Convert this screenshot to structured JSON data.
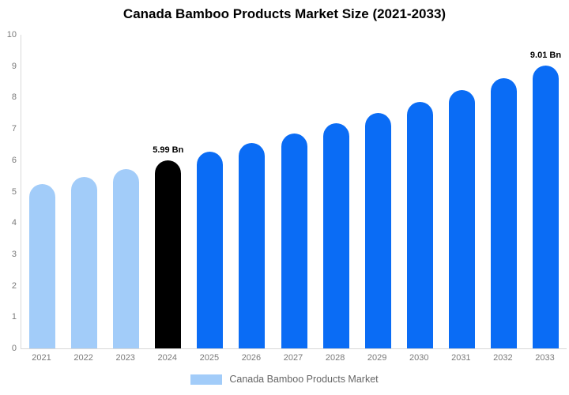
{
  "title": "Canada Bamboo Products Market Size (2021-2033)",
  "legend": {
    "label": "Canada Bamboo Products Market",
    "swatch_color": "#a2ccf9"
  },
  "colors": {
    "light_blue_bar": "#a2ccf9",
    "blue_bar": "#0a6cf5",
    "highlight_bar": "#000000",
    "axis_line": "#d8d8d8",
    "tick_text": "#7a7a7a",
    "legend_text": "#666666",
    "title_text": "#000000",
    "background": "#ffffff"
  },
  "chart_data": {
    "type": "bar",
    "title": "Canada Bamboo Products Market Size (2021-2033)",
    "categories": [
      "2021",
      "2022",
      "2023",
      "2024",
      "2025",
      "2026",
      "2027",
      "2028",
      "2029",
      "2030",
      "2031",
      "2032",
      "2033"
    ],
    "values": [
      5.23,
      5.47,
      5.72,
      5.99,
      6.27,
      6.56,
      6.86,
      7.18,
      7.51,
      7.86,
      8.23,
      8.61,
      9.01
    ],
    "unit": "Bn",
    "xlabel": "",
    "ylabel": "",
    "ylim": [
      0,
      10
    ],
    "yticks": [
      0,
      1,
      2,
      3,
      4,
      5,
      6,
      7,
      8,
      9,
      10
    ],
    "grid": false,
    "legend_position": "bottom",
    "bar_colors": [
      "#a2ccf9",
      "#a2ccf9",
      "#a2ccf9",
      "#000000",
      "#0a6cf5",
      "#0a6cf5",
      "#0a6cf5",
      "#0a6cf5",
      "#0a6cf5",
      "#0a6cf5",
      "#0a6cf5",
      "#0a6cf5",
      "#0a6cf5"
    ],
    "data_labels": [
      {
        "category": "2024",
        "text": "5.99 Bn"
      },
      {
        "category": "2033",
        "text": "9.01 Bn"
      }
    ],
    "series_name": "Canada Bamboo Products Market"
  }
}
